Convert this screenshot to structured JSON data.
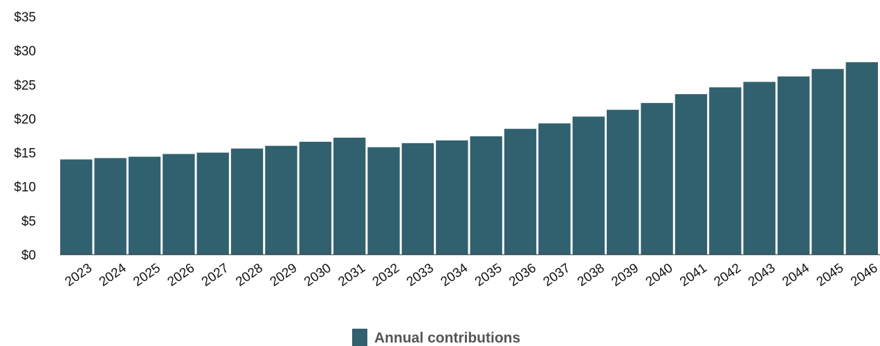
{
  "chart_data": {
    "type": "bar",
    "categories": [
      "2023",
      "2024",
      "2025",
      "2026",
      "2027",
      "2028",
      "2029",
      "2030",
      "2031",
      "2032",
      "2033",
      "2034",
      "2035",
      "2036",
      "2037",
      "2038",
      "2039",
      "2040",
      "2041",
      "2042",
      "2043",
      "2044",
      "2045",
      "2046"
    ],
    "series": [
      {
        "name": "Annual contributions",
        "color": "#31616f",
        "values": [
          14.0,
          14.2,
          14.4,
          14.8,
          15.0,
          15.6,
          16.0,
          16.6,
          17.2,
          15.8,
          16.4,
          16.8,
          17.4,
          18.5,
          19.3,
          20.3,
          21.3,
          22.3,
          23.6,
          24.6,
          25.4,
          26.2,
          27.3,
          28.3
        ]
      }
    ],
    "title": "",
    "xlabel": "",
    "ylabel": "",
    "ylim": [
      0,
      35
    ],
    "yticks": [
      0,
      5,
      10,
      15,
      20,
      25,
      30,
      35
    ],
    "ytick_labels": [
      "$0",
      "$5",
      "$10",
      "$15",
      "$20",
      "$25",
      "$30",
      "$35"
    ],
    "grid": false,
    "legend_position": "bottom-center"
  }
}
